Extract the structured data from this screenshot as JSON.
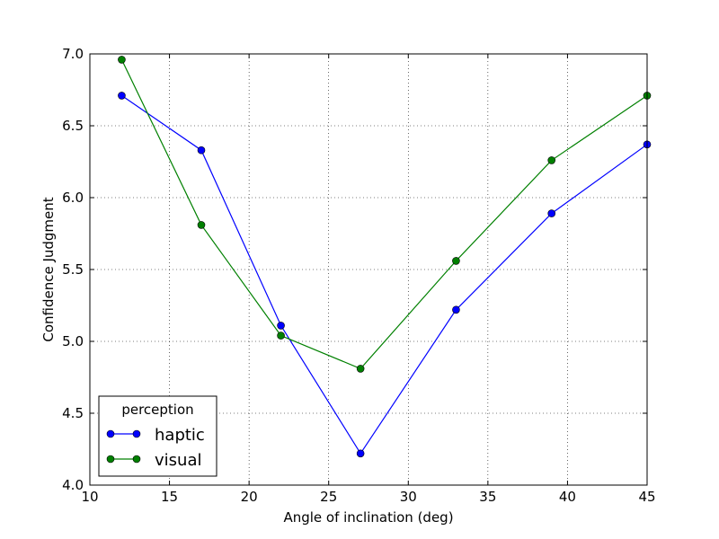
{
  "chart_data": {
    "type": "line",
    "xlabel": "Angle of inclination (deg)",
    "ylabel": "Confidence Judgment",
    "xlim": [
      10,
      45
    ],
    "ylim": [
      4.0,
      7.0
    ],
    "xticks": [
      "10",
      "15",
      "20",
      "25",
      "30",
      "35",
      "40",
      "45"
    ],
    "yticks": [
      "4.0",
      "4.5",
      "5.0",
      "5.5",
      "6.0",
      "6.5",
      "7.0"
    ],
    "x": [
      12,
      17,
      22,
      27,
      33,
      39,
      45
    ],
    "grid": true,
    "legend": {
      "title": "perception",
      "placement": "lower-left"
    },
    "series": [
      {
        "name": "haptic",
        "color": "#0000ff",
        "values": [
          6.71,
          6.33,
          5.11,
          4.22,
          5.22,
          5.89,
          6.37
        ]
      },
      {
        "name": "visual",
        "color": "#008000",
        "values": [
          6.96,
          5.81,
          5.04,
          4.81,
          5.56,
          6.26,
          6.71
        ]
      }
    ]
  }
}
